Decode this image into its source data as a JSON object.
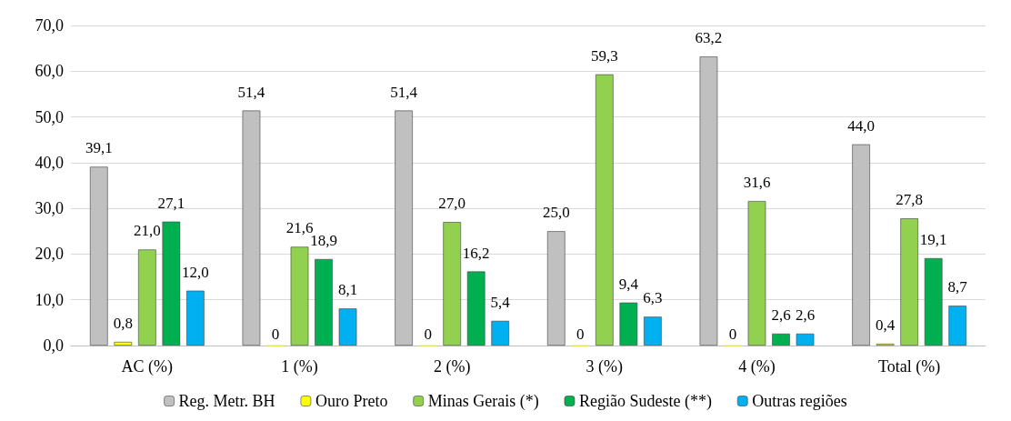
{
  "chart_data": {
    "type": "bar",
    "categories": [
      "AC (%)",
      "1 (%)",
      "2 (%)",
      "3 (%)",
      "4 (%)",
      "Total (%)"
    ],
    "series": [
      {
        "name": "Reg. Metr. BH",
        "color": "#c0c0c0",
        "values": [
          39.1,
          51.4,
          51.4,
          25.0,
          63.2,
          44.0
        ],
        "value_labels": [
          "39,1",
          "51,4",
          "51,4",
          "25,0",
          "63,2",
          "44,0"
        ]
      },
      {
        "name": "Ouro Preto",
        "color": "#ffff00",
        "values": [
          0.8,
          0,
          0,
          0,
          0,
          0.4
        ],
        "value_labels": [
          "0,8",
          "0",
          "0",
          "0",
          "0",
          "0,4"
        ]
      },
      {
        "name": "Minas Gerais (*)",
        "color": "#92d050",
        "values": [
          21.0,
          21.6,
          27.0,
          59.3,
          31.6,
          27.8
        ],
        "value_labels": [
          "21,0",
          "21,6",
          "27,0",
          "59,3",
          "31,6",
          "27,8"
        ]
      },
      {
        "name": "Região Sudeste (**)",
        "color": "#00b050",
        "values": [
          27.1,
          18.9,
          16.2,
          9.4,
          2.6,
          19.1
        ],
        "value_labels": [
          "27,1",
          "18,9",
          "16,2",
          "9,4",
          "2,6",
          "19,1"
        ]
      },
      {
        "name": "Outras regiões",
        "color": "#00b0f0",
        "values": [
          12.0,
          8.1,
          5.4,
          6.3,
          2.6,
          8.7
        ],
        "value_labels": [
          "12,0",
          "8,1",
          "5,4",
          "6,3",
          "2,6",
          "8,7"
        ]
      }
    ],
    "ylim": [
      0,
      70
    ],
    "yticks": [
      {
        "value": 0,
        "label": "0,0"
      },
      {
        "value": 10,
        "label": "10,0"
      },
      {
        "value": 20,
        "label": "20,0"
      },
      {
        "value": 30,
        "label": "30,0"
      },
      {
        "value": 40,
        "label": "40,0"
      },
      {
        "value": 50,
        "label": "50,0"
      },
      {
        "value": 60,
        "label": "60,0"
      },
      {
        "value": 70,
        "label": "70,0"
      }
    ],
    "grid": "y",
    "legend": "bottom"
  }
}
